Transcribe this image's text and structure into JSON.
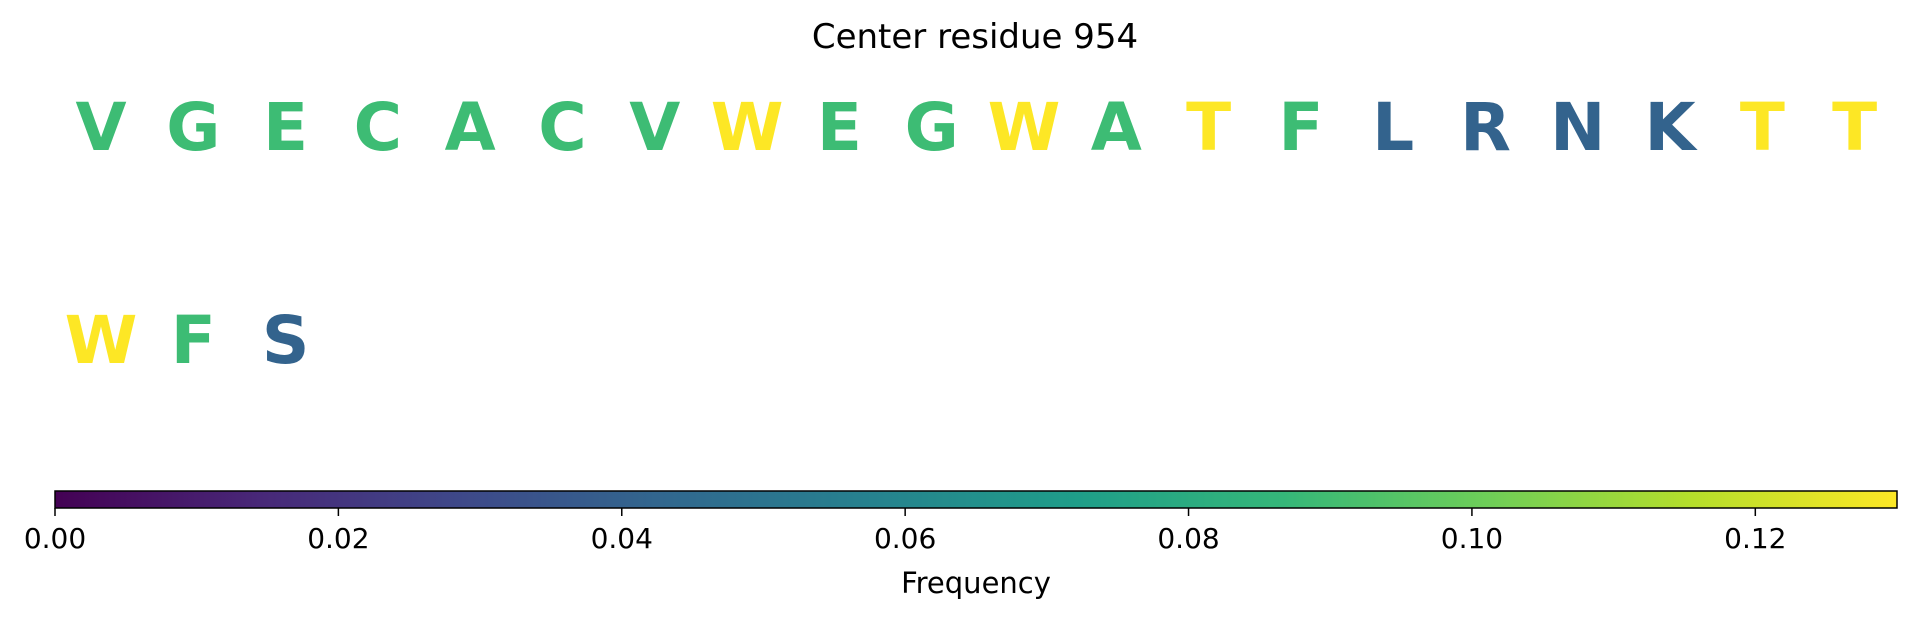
{
  "chart_data": {
    "type": "sequence-logo",
    "title": "Center residue 954",
    "colormap": "viridis",
    "vmin": 0.0,
    "vmax": 0.13,
    "residues": [
      {
        "letter": "V",
        "color": "#3dbc74"
      },
      {
        "letter": "G",
        "color": "#3dbc74"
      },
      {
        "letter": "E",
        "color": "#3dbc74"
      },
      {
        "letter": "C",
        "color": "#3dbc74"
      },
      {
        "letter": "A",
        "color": "#3dbc74"
      },
      {
        "letter": "C",
        "color": "#3dbc74"
      },
      {
        "letter": "V",
        "color": "#3dbc74"
      },
      {
        "letter": "W",
        "color": "#fde725"
      },
      {
        "letter": "E",
        "color": "#3dbc74"
      },
      {
        "letter": "G",
        "color": "#3dbc74"
      },
      {
        "letter": "W",
        "color": "#fde725"
      },
      {
        "letter": "A",
        "color": "#3dbc74"
      },
      {
        "letter": "T",
        "color": "#fde725"
      },
      {
        "letter": "F",
        "color": "#3dbc74"
      },
      {
        "letter": "L",
        "color": "#33638d"
      },
      {
        "letter": "R",
        "color": "#33638d"
      },
      {
        "letter": "N",
        "color": "#33638d"
      },
      {
        "letter": "K",
        "color": "#33638d"
      },
      {
        "letter": "T",
        "color": "#fde725"
      },
      {
        "letter": "T",
        "color": "#fde725"
      },
      {
        "letter": "W",
        "color": "#fde725"
      },
      {
        "letter": "F",
        "color": "#3dbc74"
      },
      {
        "letter": "S",
        "color": "#33638d"
      }
    ],
    "residues_per_row": 20,
    "colorbar": {
      "label": "Frequency",
      "ticks": [
        0.0,
        0.02,
        0.04,
        0.06,
        0.08,
        0.1,
        0.12
      ],
      "tick_labels": [
        "0.00",
        "0.02",
        "0.04",
        "0.06",
        "0.08",
        "0.10",
        "0.12"
      ],
      "stops": [
        "#440154",
        "#482878",
        "#3e4989",
        "#31688e",
        "#26828e",
        "#1f9e89",
        "#35b779",
        "#6ece58",
        "#b5de2b",
        "#fde725"
      ]
    }
  }
}
